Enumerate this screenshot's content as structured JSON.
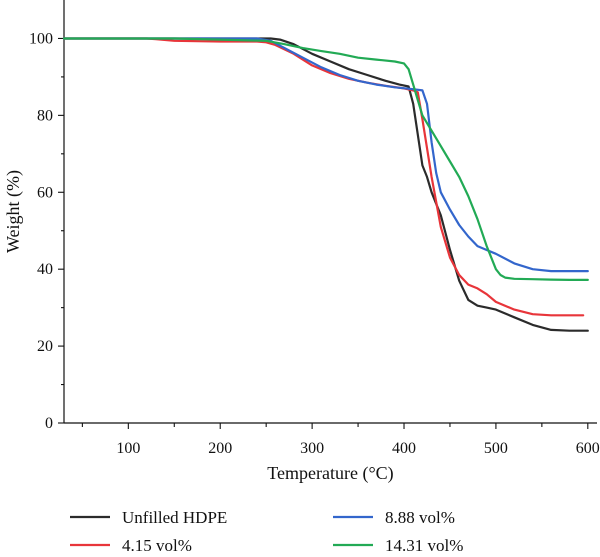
{
  "chart_data": {
    "type": "line",
    "title": "",
    "xlabel": "Temperature (°C)",
    "ylabel": "Weight (%)",
    "xlim": [
      30,
      610
    ],
    "ylim": [
      0,
      110
    ],
    "xticks": [
      100,
      200,
      300,
      400,
      500,
      600
    ],
    "yticks": [
      0,
      20,
      40,
      60,
      80,
      100
    ],
    "grid": false,
    "legend_position": "bottom",
    "series": [
      {
        "name": "Unfilled HDPE",
        "color": "#2b2b2b",
        "x": [
          30,
          100,
          150,
          200,
          240,
          255,
          265,
          280,
          300,
          320,
          340,
          360,
          380,
          395,
          405,
          410,
          415,
          420,
          425,
          430,
          440,
          450,
          460,
          470,
          480,
          490,
          500,
          520,
          540,
          560,
          580,
          600
        ],
        "y": [
          100,
          100,
          100,
          100,
          100,
          100,
          99.7,
          98.5,
          96,
          94,
          92,
          90.5,
          89,
          88,
          87.5,
          83,
          75,
          67,
          64,
          60,
          54,
          45,
          37,
          32,
          30.5,
          30,
          29.5,
          27.5,
          25.5,
          24.2,
          24,
          24
        ]
      },
      {
        "name": "4.15 vol%",
        "color": "#e8353a",
        "x": [
          30,
          120,
          130,
          150,
          200,
          240,
          250,
          260,
          280,
          300,
          320,
          340,
          360,
          380,
          400,
          410,
          415,
          420,
          430,
          440,
          450,
          460,
          470,
          480,
          490,
          500,
          520,
          540,
          560,
          580,
          595
        ],
        "y": [
          100,
          100,
          99.8,
          99.4,
          99.2,
          99.2,
          99,
          98.3,
          96,
          93,
          91,
          89.5,
          88.5,
          87.7,
          87,
          86.5,
          86,
          79,
          64,
          51,
          43,
          38.5,
          36,
          35,
          33.5,
          31.5,
          29.5,
          28.3,
          28,
          28,
          28
        ]
      },
      {
        "name": "8.88 vol%",
        "color": "#3366cc",
        "x": [
          30,
          100,
          150,
          200,
          240,
          255,
          270,
          290,
          310,
          330,
          350,
          370,
          390,
          410,
          420,
          425,
          430,
          435,
          440,
          450,
          460,
          470,
          480,
          490,
          500,
          520,
          540,
          560,
          580,
          600
        ],
        "y": [
          100,
          100,
          100,
          100,
          100,
          99.4,
          97.5,
          95,
          92.5,
          90.5,
          89,
          88,
          87.3,
          86.8,
          86.5,
          83,
          73,
          65,
          60,
          55.5,
          51.5,
          48.5,
          46,
          45,
          44,
          41.5,
          40,
          39.5,
          39.5,
          39.5
        ]
      },
      {
        "name": "14.31 vol%",
        "color": "#22aa55",
        "x": [
          30,
          100,
          150,
          200,
          230,
          250,
          270,
          290,
          310,
          330,
          350,
          370,
          390,
          400,
          405,
          410,
          415,
          420,
          430,
          440,
          450,
          460,
          470,
          480,
          490,
          500,
          505,
          510,
          520,
          540,
          560,
          580,
          600
        ],
        "y": [
          100,
          100,
          100,
          99.7,
          99.5,
          99.4,
          98.5,
          97.5,
          96.7,
          96,
          95,
          94.5,
          94,
          93.5,
          92,
          88,
          84,
          80,
          76,
          72,
          68,
          64,
          59,
          53,
          46,
          40,
          38.5,
          37.8,
          37.5,
          37.4,
          37.3,
          37.2,
          37.2
        ]
      }
    ]
  }
}
